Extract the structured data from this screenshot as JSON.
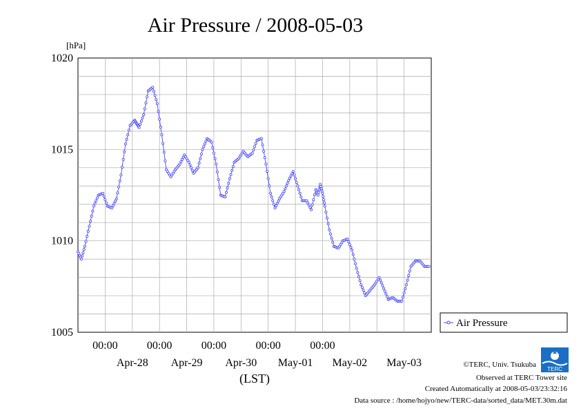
{
  "page": {
    "title": "Air Pressure / 2008-05-03"
  },
  "chart_data": {
    "type": "line",
    "title": "Air Pressure / 2008-05-03",
    "ylabel": "[hPa]",
    "xlabel": "(LST)",
    "ylim": [
      1005,
      1020
    ],
    "yticks": [
      "1005",
      "1010",
      "1015",
      "1020"
    ],
    "xlim": [
      "2008-04-27T12:00",
      "2008-05-03T24:00"
    ],
    "x_time_labels": [
      "00:00",
      "00:00",
      "00:00",
      "00:00",
      "00:00"
    ],
    "x_date_labels": [
      "Apr-28",
      "Apr-29",
      "Apr-30",
      "May-01",
      "May-02",
      "May-03"
    ],
    "grid": true,
    "legend_position": "right",
    "series": [
      {
        "name": "Air Pressure",
        "color": "#4444ff",
        "x": [
          "2008-04-27T12:00",
          "2008-04-27T13:30",
          "2008-04-27T15:00",
          "2008-04-27T17:00",
          "2008-04-27T19:00",
          "2008-04-27T21:00",
          "2008-04-27T23:00",
          "2008-04-28T01:00",
          "2008-04-28T03:00",
          "2008-04-28T05:00",
          "2008-04-28T07:00",
          "2008-04-28T09:00",
          "2008-04-28T11:00",
          "2008-04-28T13:00",
          "2008-04-28T14:00",
          "2008-04-28T15:00",
          "2008-04-28T17:00",
          "2008-04-28T19:00",
          "2008-04-28T21:00",
          "2008-04-28T23:00",
          "2008-04-29T01:00",
          "2008-04-29T03:00",
          "2008-04-29T05:00",
          "2008-04-29T07:00",
          "2008-04-29T09:00",
          "2008-04-29T11:00",
          "2008-04-29T13:00",
          "2008-04-29T15:00",
          "2008-04-29T17:00",
          "2008-04-29T19:00",
          "2008-04-29T21:00",
          "2008-04-29T23:00",
          "2008-04-30T01:00",
          "2008-04-30T03:00",
          "2008-04-30T05:00",
          "2008-04-30T07:00",
          "2008-04-30T09:00",
          "2008-04-30T11:00",
          "2008-04-30T13:00",
          "2008-04-30T15:00",
          "2008-04-30T17:00",
          "2008-04-30T19:00",
          "2008-04-30T21:00",
          "2008-04-30T23:00",
          "2008-05-01T01:00",
          "2008-05-01T03:00",
          "2008-05-01T05:00",
          "2008-05-01T07:00",
          "2008-05-01T09:00",
          "2008-05-01T11:00",
          "2008-05-01T13:00",
          "2008-05-01T15:00",
          "2008-05-01T17:00",
          "2008-05-01T19:00",
          "2008-05-01T21:00",
          "2008-05-01T22:00",
          "2008-05-01T23:00",
          "2008-05-02T00:00",
          "2008-05-02T01:00",
          "2008-05-02T03:00",
          "2008-05-02T05:00",
          "2008-05-02T07:00",
          "2008-05-02T09:00",
          "2008-05-02T11:00",
          "2008-05-02T13:00",
          "2008-05-02T15:00",
          "2008-05-02T17:00",
          "2008-05-02T19:00",
          "2008-05-02T21:00",
          "2008-05-02T23:00",
          "2008-05-03T01:00",
          "2008-05-03T03:00",
          "2008-05-03T05:00",
          "2008-05-03T07:00",
          "2008-05-03T09:00",
          "2008-05-03T11:00",
          "2008-05-03T13:00",
          "2008-05-03T15:00",
          "2008-05-03T17:00",
          "2008-05-03T19:00",
          "2008-05-03T21:00",
          "2008-05-03T23:00"
        ],
        "values": [
          1009.4,
          1009.0,
          1009.7,
          1010.8,
          1011.9,
          1012.5,
          1012.6,
          1011.9,
          1011.8,
          1012.3,
          1013.6,
          1015.3,
          1016.3,
          1016.6,
          1016.4,
          1016.2,
          1016.9,
          1018.2,
          1018.4,
          1017.5,
          1015.8,
          1013.9,
          1013.5,
          1013.9,
          1014.2,
          1014.7,
          1014.3,
          1013.7,
          1014.0,
          1015.0,
          1015.6,
          1015.4,
          1014.2,
          1012.5,
          1012.4,
          1013.4,
          1014.3,
          1014.5,
          1014.9,
          1014.6,
          1014.8,
          1015.5,
          1015.6,
          1014.2,
          1012.6,
          1011.8,
          1012.3,
          1012.7,
          1013.3,
          1013.8,
          1013.0,
          1012.2,
          1012.2,
          1011.7,
          1012.8,
          1012.5,
          1013.1,
          1012.6,
          1011.9,
          1010.6,
          1009.7,
          1009.6,
          1010.0,
          1010.1,
          1009.5,
          1008.5,
          1007.6,
          1007.0,
          1007.3,
          1007.6,
          1008.0,
          1007.4,
          1006.8,
          1006.9,
          1006.7,
          1006.7,
          1007.6,
          1008.6,
          1008.9,
          1008.9,
          1008.6,
          1008.6
        ]
      }
    ]
  },
  "legend": {
    "label": "Air Pressure"
  },
  "credits": {
    "copyright": "©TERC, Univ. Tsukuba",
    "observed": "Observed at TERC Tower site",
    "created": "Created Automatically at 2008-05-03/23:32:16",
    "source": "Data source : /home/hojyo/new/TERC-data/sorted_data/MET.30m.dat"
  },
  "logo": {
    "text": "TERC",
    "icon": "terc-logo-icon"
  }
}
